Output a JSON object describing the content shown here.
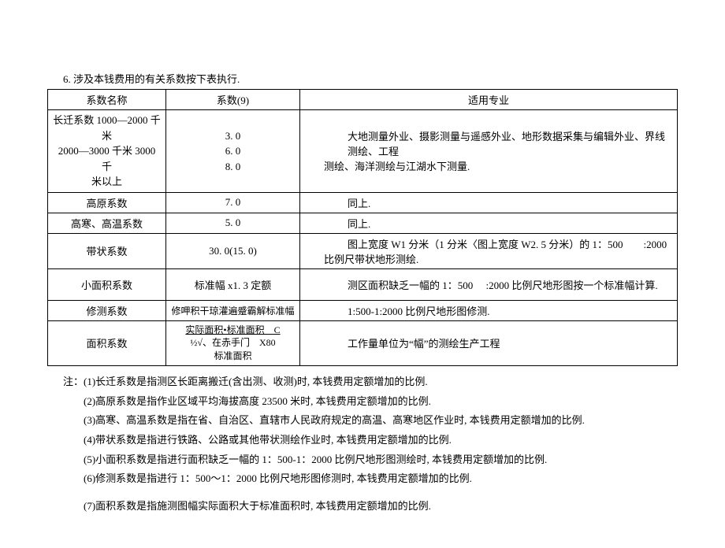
{
  "intro": "6. 涉及本钱费用的有关系数按下表执行.",
  "headers": {
    "c1": "系数名称",
    "c2": "系数(9)",
    "c3": "适用专业"
  },
  "rows": {
    "r1": {
      "c1_l1": "长迁系数 1000—2000 千米",
      "c1_l2": "2000—3000 千米 3000 千",
      "c1_l3": "米以上",
      "c2_l1": "3. 0",
      "c2_l2": "6. 0",
      "c2_l3": "8. 0",
      "c3_l1": "大地测量外业、摄影测量与遥感外业、地形数据采集与编辑外业、界线测绘、工程",
      "c3_l2": "测绘、海洋测绘与江湖水下测量."
    },
    "r2": {
      "c1": "高原系数",
      "c2": "7. 0",
      "c3": "同上."
    },
    "r3": {
      "c1": "高寒、高温系数",
      "c2": "5. 0",
      "c3": "同上."
    },
    "r4": {
      "c1": "带状系数",
      "c2": "30. 0(15. 0)",
      "c3_l1": "图上宽度 W1 分米（1 分米〈图上宽度 W2. 5 分米）的 1：500        :2000",
      "c3_l2": "比例尺带状地形测绘."
    },
    "r5": {
      "c1": "小面积系数",
      "c2": "标准幅 x1. 3 定额",
      "c3": "测区面积缺乏一幅的 1：500     :2000 比例尺地形图按一个标准幅计算."
    },
    "r6": {
      "c1": "修测系数",
      "c2": "修呷积干琼灌遍蹙霸解标准幅",
      "c3": "1:500-1:2000 比例尺地形图修测."
    },
    "r7": {
      "c1": "面积系数",
      "c2_l1": "实际面积•标准面积    C",
      "c2_l2": "½√、在赤手门    X80",
      "c2_l3": "标准面积",
      "c3": "工作量单位为“幅”的测绘生产工程"
    }
  },
  "notes": {
    "prefix": "注：",
    "n1": "(1)长迁系数是指测区长距离搬迁(含出测、收测)时, 本钱费用定额增加的比例.",
    "n2": "(2)高原系数是指作业区域平均海拔高度 23500 米时, 本钱费用定额增加的比例.",
    "n3": "(3)高寒、高温系数是指在省、自治区、直辖市人民政府规定的高温、高寒地区作业时, 本钱费用定额增加的比例.",
    "n4": "(4)带状系数是指进行铁路、公路或其他带状测绘作业时, 本钱费用定额增加的比例.",
    "n5": "(5)小面积系数是指进行面积缺乏一幅的 1：500-1：2000 比例尺地形图测绘时, 本钱费用定额增加的比例.",
    "n6": "(6)修测系数是指进行 1：500～1：2000 比例尺地形图修测时, 本钱费用定额增加的比例.",
    "n7": "(7)面积系数是指施测图幅实际面积大于标准面积时, 本钱费用定额增加的比例."
  }
}
